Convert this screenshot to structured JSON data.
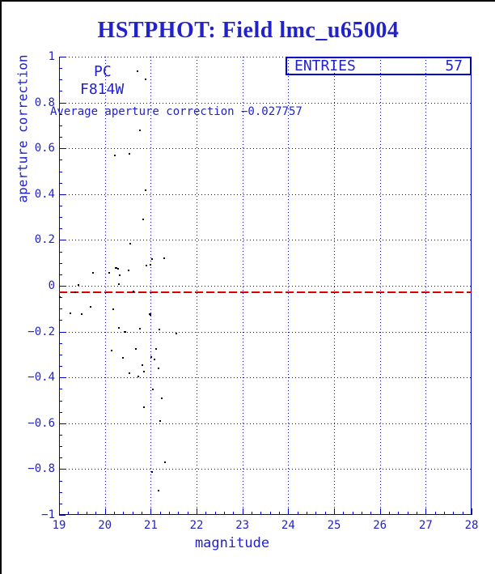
{
  "window": {
    "title": "HSTPHOT: Field lmc_u65004"
  },
  "colors": {
    "background": "#ffffff",
    "frame_border": "#000000",
    "line_blue": "#0000cd",
    "text_blue": "#2222cd",
    "red_dashed": "#dd0000",
    "point_black": "#000000"
  },
  "entries": {
    "label": "ENTRIES",
    "value": "57"
  },
  "annotations": {
    "detector": "PC",
    "filter": "F814W",
    "average_text": "Average aperture correction −0.027757"
  },
  "axes": {
    "x_label": "magnitude",
    "y_label": "aperture correction",
    "x_ticks": [
      {
        "v": 19,
        "label": "19"
      },
      {
        "v": 20,
        "label": "20"
      },
      {
        "v": 21,
        "label": "21"
      },
      {
        "v": 22,
        "label": "22"
      },
      {
        "v": 23,
        "label": "23"
      },
      {
        "v": 24,
        "label": "24"
      },
      {
        "v": 25,
        "label": "25"
      },
      {
        "v": 26,
        "label": "26"
      },
      {
        "v": 27,
        "label": "27"
      },
      {
        "v": 28,
        "label": "28"
      }
    ],
    "y_ticks": [
      {
        "v": 1,
        "label": "1"
      },
      {
        "v": 0.8,
        "label": "0.8"
      },
      {
        "v": 0.6,
        "label": "0.6"
      },
      {
        "v": 0.4,
        "label": "0.4"
      },
      {
        "v": 0.2,
        "label": "0.2"
      },
      {
        "v": 0,
        "label": "0"
      },
      {
        "v": -0.2,
        "label": "−0.2"
      },
      {
        "v": -0.4,
        "label": "−0.4"
      },
      {
        "v": -0.6,
        "label": "−0.6"
      },
      {
        "v": -0.8,
        "label": "−0.8"
      },
      {
        "v": -1,
        "label": "−1"
      }
    ]
  },
  "chart_data": {
    "type": "scatter",
    "title": "HSTPHOT: Field lmc_u65004",
    "xlabel": "magnitude",
    "ylabel": "aperture correction",
    "xlim": [
      19,
      28
    ],
    "ylim": [
      -1,
      1
    ],
    "x_gridlines": [
      20,
      21,
      22,
      23,
      24,
      25,
      26,
      27
    ],
    "y_gridlines": [
      1,
      0.8,
      0.6,
      0.4,
      0.2,
      0,
      -0.2,
      -0.4,
      -0.6,
      -0.8
    ],
    "x_minor_step": 0.2,
    "y_minor_step": 0.05,
    "grid": "dotted",
    "legend": {
      "label": "ENTRIES",
      "entries": 57,
      "position": "top-right"
    },
    "average_line": {
      "value": -0.027757,
      "style": "dashed",
      "color": "#dd0000"
    },
    "points": [
      [
        20.71,
        0.937
      ],
      [
        20.89,
        0.901
      ],
      [
        20.76,
        0.679
      ],
      [
        20.22,
        0.569
      ],
      [
        20.54,
        0.576
      ],
      [
        20.89,
        0.417
      ],
      [
        20.84,
        0.29
      ],
      [
        20.55,
        0.184
      ],
      [
        21.03,
        0.117
      ],
      [
        21.29,
        0.12
      ],
      [
        20.91,
        0.088
      ],
      [
        20.99,
        0.092
      ],
      [
        20.24,
        0.078
      ],
      [
        20.29,
        0.074
      ],
      [
        20.52,
        0.067
      ],
      [
        20.09,
        0.057
      ],
      [
        19.74,
        0.057
      ],
      [
        20.32,
        0.046
      ],
      [
        20.31,
        0.007
      ],
      [
        19.42,
        0.004
      ],
      [
        20.62,
        -0.025
      ],
      [
        19.35,
        -0.028
      ],
      [
        19.01,
        -0.049
      ],
      [
        19.69,
        -0.092
      ],
      [
        19.25,
        -0.12
      ],
      [
        19.49,
        -0.124
      ],
      [
        20.18,
        -0.102
      ],
      [
        20.98,
        -0.124
      ],
      [
        20.99,
        -0.127
      ],
      [
        20.31,
        -0.184
      ],
      [
        20.43,
        -0.201
      ],
      [
        20.76,
        -0.187
      ],
      [
        21.19,
        -0.191
      ],
      [
        21.56,
        -0.209
      ],
      [
        20.15,
        -0.283
      ],
      [
        20.68,
        -0.276
      ],
      [
        21.12,
        -0.276
      ],
      [
        20.39,
        -0.314
      ],
      [
        21.01,
        -0.311
      ],
      [
        21.08,
        -0.322
      ],
      [
        20.82,
        -0.346
      ],
      [
        21.17,
        -0.36
      ],
      [
        20.85,
        -0.375
      ],
      [
        20.54,
        -0.382
      ],
      [
        20.73,
        -0.396
      ],
      [
        21.05,
        -0.452
      ],
      [
        21.24,
        -0.491
      ],
      [
        20.85,
        -0.53
      ],
      [
        21.21,
        -0.59
      ],
      [
        21.31,
        -0.77
      ],
      [
        21.03,
        -0.813
      ],
      [
        21.17,
        -0.894
      ],
      [
        20.99,
        -0.125
      ],
      [
        20.25,
        0.076
      ],
      [
        20.9,
        0.09
      ],
      [
        20.44,
        -0.2
      ],
      [
        19.36,
        -0.027
      ]
    ]
  }
}
